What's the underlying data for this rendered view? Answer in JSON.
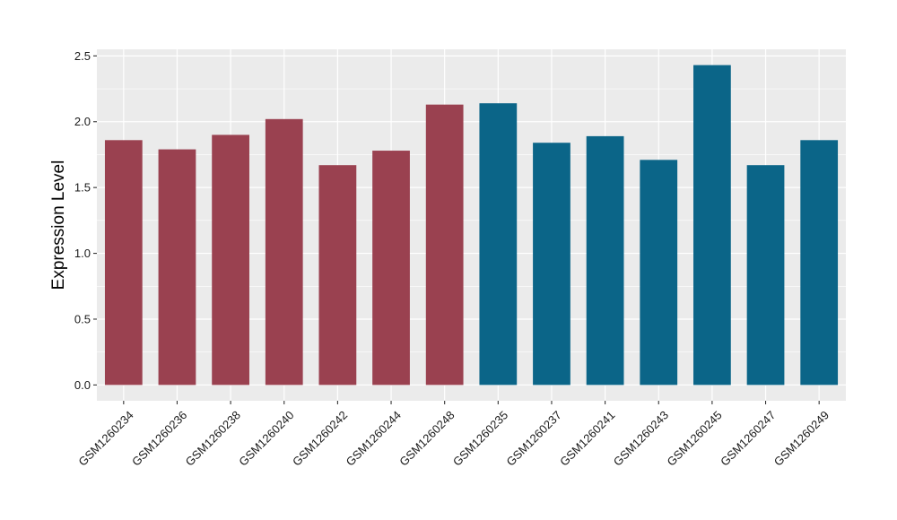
{
  "chart_data": {
    "type": "bar",
    "title": "",
    "xlabel": "",
    "ylabel": "Expression Level",
    "ylim": [
      -0.12,
      2.55
    ],
    "yticks": [
      0.0,
      0.5,
      1.0,
      1.5,
      2.0,
      2.5
    ],
    "ytick_labels": [
      "0.0",
      "0.5",
      "1.0",
      "1.5",
      "2.0",
      "2.5"
    ],
    "grid": true,
    "legend": "none",
    "categories": [
      "GSM1260234",
      "GSM1260236",
      "GSM1260238",
      "GSM1260240",
      "GSM1260242",
      "GSM1260244",
      "GSM1260248",
      "GSM1260235",
      "GSM1260237",
      "GSM1260241",
      "GSM1260243",
      "GSM1260245",
      "GSM1260247",
      "GSM1260249"
    ],
    "values": [
      1.86,
      1.79,
      1.9,
      2.02,
      1.67,
      1.78,
      2.13,
      2.14,
      1.84,
      1.89,
      1.71,
      2.43,
      1.67,
      1.86
    ],
    "bar_colors": [
      "#9a4150",
      "#9a4150",
      "#9a4150",
      "#9a4150",
      "#9a4150",
      "#9a4150",
      "#9a4150",
      "#0b6588",
      "#0b6588",
      "#0b6588",
      "#0b6588",
      "#0b6588",
      "#0b6588",
      "#0b6588"
    ],
    "colors": {
      "panel_background": "#ebebeb",
      "grid_major": "#ffffff",
      "axis_tick": "#333333"
    }
  }
}
